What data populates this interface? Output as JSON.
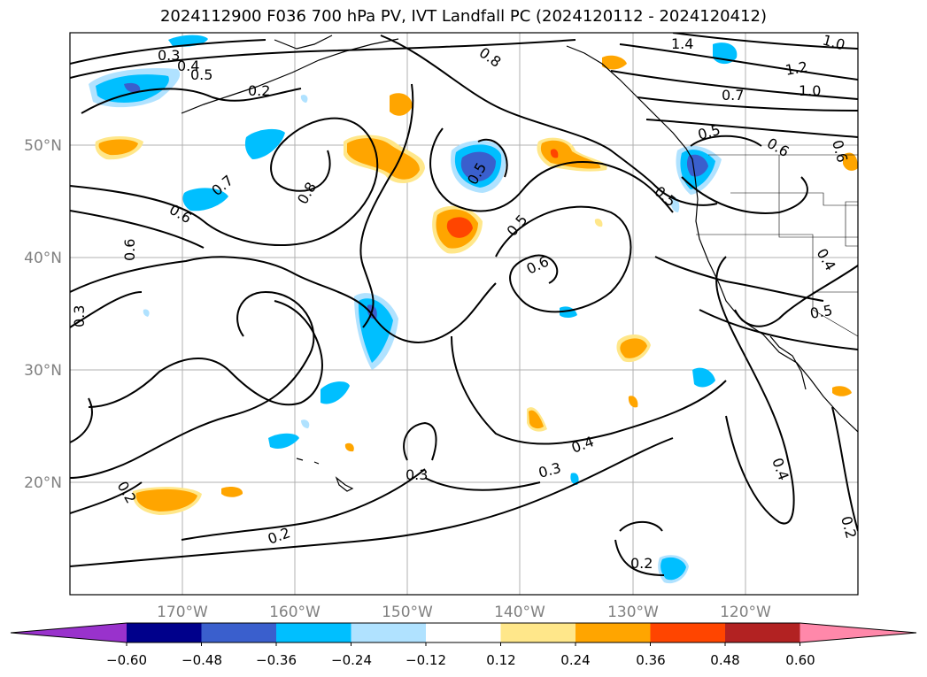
{
  "title": "2024112900 F036 700 hPa PV, IVT Landfall PC (2024120112 - 2024120412)",
  "map": {
    "projection": "PlateCarree",
    "lon_range": [
      180,
      110
    ],
    "lat_range": [
      10,
      60
    ],
    "lon_ticks": [
      "170°W",
      "160°W",
      "150°W",
      "140°W",
      "130°W",
      "120°W"
    ],
    "lat_ticks": [
      "50°N",
      "40°N",
      "30°N",
      "20°N"
    ],
    "grid": true
  },
  "contour_labels": [
    "0.2",
    "0.3",
    "0.4",
    "0.5",
    "0.8",
    "1.4",
    "1.0",
    "1.2",
    "1.0",
    "0.7",
    "0.6",
    "0.5",
    "0.7",
    "0.6",
    "0.8",
    "0.5",
    "0.6",
    "0.5",
    "0.6",
    "0.3",
    "0.5",
    "0.4",
    "0.5",
    "0.4",
    "0.3",
    "0.3",
    "0.2",
    "0.2",
    "0.4",
    "0.2",
    "0.2",
    "0.6"
  ],
  "colorbar": {
    "ticks": [
      "−0.60",
      "−0.48",
      "−0.36",
      "−0.24",
      "−0.12",
      "0.12",
      "0.24",
      "0.36",
      "0.48",
      "0.60"
    ],
    "colors": [
      "#9932cc",
      "#00008b",
      "#3a5fcd",
      "#00bfff",
      "#b0e2ff",
      "#ffffff",
      "#ffe78a",
      "#ffa500",
      "#ff4500",
      "#b22222",
      "#ff88aa"
    ],
    "extend": "both"
  }
}
